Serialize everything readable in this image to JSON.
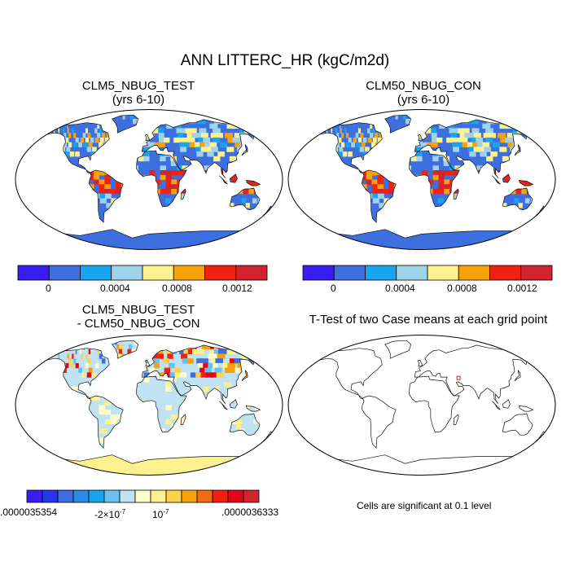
{
  "main_title": "ANN LITTERC_HR (kgC/m2d)",
  "panels": [
    {
      "title": "CLM5_NBUG_TEST",
      "subtitle": "(yrs 6-10)"
    },
    {
      "title": "CLM50_NBUG_CON",
      "subtitle": "(yrs 6-10)"
    },
    {
      "title": "CLM5_NBUG_TEST",
      "subtitle": "- CLM50_NBUG_CON"
    },
    {
      "title": "T-Test of two Case means at each grid point",
      "subtitle": ""
    }
  ],
  "colorbar_top": {
    "colors": [
      "#3a1df0",
      "#3e6fe0",
      "#19a4f0",
      "#9fd3ea",
      "#fdf08f",
      "#f7a20b",
      "#f22010",
      "#d2242c"
    ],
    "labels": [
      "0",
      "0.0004",
      "0.0008",
      "0.0012"
    ]
  },
  "colorbar_diff": {
    "colors": [
      "#3a1df0",
      "#2636f0",
      "#3e6fe0",
      "#2c8ae8",
      "#19a4f0",
      "#6ac0ee",
      "#bfe3f3",
      "#fffbc8",
      "#fdf08f",
      "#fbd24a",
      "#f7a20b",
      "#f56a0c",
      "#f22010",
      "#e3051a",
      "#d2242c"
    ],
    "labels": [
      ".0000035354",
      "-2×10",
      "-7",
      "10",
      "-7",
      ".0000036333"
    ]
  },
  "ttest_note": "Cells are significant at 0.1 level",
  "map_colors": {
    "land_default_1": "#3e6fe0",
    "land_default_2": "#3e6fe0",
    "diff_default": "#bfe3f3",
    "ocean": "#ffffff",
    "coast": "#111111"
  }
}
